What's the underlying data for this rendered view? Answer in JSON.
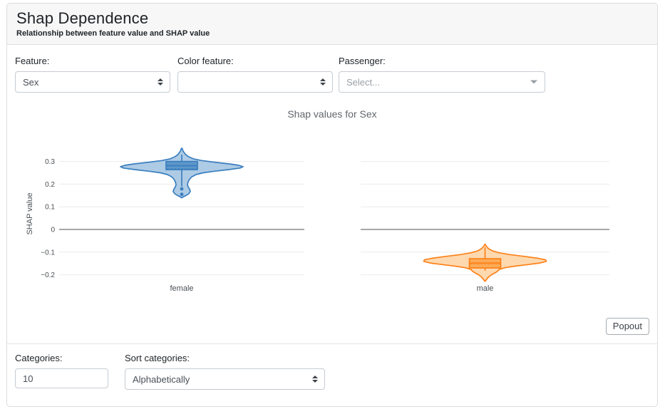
{
  "header": {
    "title": "Shap Dependence",
    "subtitle": "Relationship between feature value and SHAP value"
  },
  "controls": {
    "feature": {
      "label": "Feature:",
      "value": "Sex"
    },
    "color_feature": {
      "label": "Color feature:",
      "value": ""
    },
    "passenger": {
      "label": "Passenger:",
      "placeholder": "Select..."
    }
  },
  "popout_label": "Popout",
  "footer": {
    "categories": {
      "label": "Categories:",
      "value": "10"
    },
    "sort": {
      "label": "Sort categories:",
      "value": "Alphabetically"
    }
  },
  "chart_data": {
    "type": "violin",
    "title": "Shap values for Sex",
    "ylabel": "SHAP value",
    "categories": [
      "female",
      "male"
    ],
    "yticks": [
      0.3,
      0.2,
      0.1,
      0,
      -0.1,
      -0.2
    ],
    "ylim": [
      -0.26,
      0.41
    ],
    "grid": true,
    "zero_line_color": "#737373",
    "grid_color": "#ececec",
    "series": [
      {
        "name": "female",
        "color": "#3a7ebf",
        "fill": "#aecbe5",
        "box_fill": "#5d97c9",
        "median": 0.281,
        "mean": 0.268,
        "q1": 0.264,
        "q3": 0.3,
        "whisker_high": 0.33,
        "whisker_low": 0.19,
        "outliers": [
          0.179,
          0.155
        ],
        "min": 0.14,
        "max": 0.358,
        "profile": [
          [
            0.358,
            0.5
          ],
          [
            0.345,
            2
          ],
          [
            0.332,
            5
          ],
          [
            0.322,
            9
          ],
          [
            0.312,
            16
          ],
          [
            0.304,
            28
          ],
          [
            0.296,
            48
          ],
          [
            0.289,
            68
          ],
          [
            0.283,
            80
          ],
          [
            0.277,
            86
          ],
          [
            0.271,
            82
          ],
          [
            0.264,
            66
          ],
          [
            0.257,
            46
          ],
          [
            0.25,
            30
          ],
          [
            0.242,
            20
          ],
          [
            0.232,
            14
          ],
          [
            0.222,
            11
          ],
          [
            0.21,
            9
          ],
          [
            0.198,
            8
          ],
          [
            0.188,
            9
          ],
          [
            0.178,
            11
          ],
          [
            0.168,
            12
          ],
          [
            0.158,
            10
          ],
          [
            0.15,
            6
          ],
          [
            0.144,
            2
          ],
          [
            0.14,
            0.5
          ]
        ]
      },
      {
        "name": "male",
        "color": "#fd8118",
        "fill": "#fed9b0",
        "box_fill": "#fcab57",
        "median": -0.148,
        "mean": -0.153,
        "q1": -0.17,
        "q3": -0.129,
        "whisker_high": -0.079,
        "whisker_low": -0.182,
        "outliers": [],
        "min": -0.228,
        "max": -0.066,
        "profile": [
          [
            -0.066,
            0.5
          ],
          [
            -0.075,
            2
          ],
          [
            -0.085,
            5
          ],
          [
            -0.094,
            10
          ],
          [
            -0.103,
            20
          ],
          [
            -0.111,
            35
          ],
          [
            -0.119,
            55
          ],
          [
            -0.127,
            74
          ],
          [
            -0.134,
            85
          ],
          [
            -0.141,
            86
          ],
          [
            -0.148,
            77
          ],
          [
            -0.155,
            60
          ],
          [
            -0.162,
            42
          ],
          [
            -0.169,
            28
          ],
          [
            -0.176,
            20
          ],
          [
            -0.183,
            18
          ],
          [
            -0.19,
            15
          ],
          [
            -0.198,
            10
          ],
          [
            -0.207,
            6
          ],
          [
            -0.217,
            3
          ],
          [
            -0.228,
            0.5
          ]
        ]
      }
    ]
  }
}
